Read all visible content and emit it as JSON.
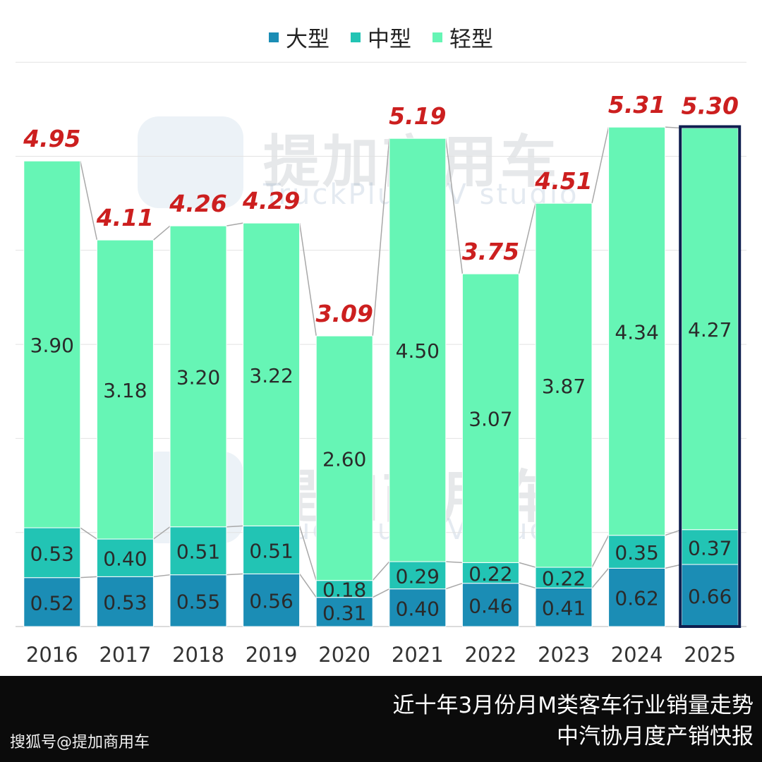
{
  "chart_data": {
    "type": "bar",
    "stacked": true,
    "categories": [
      "2016",
      "2017",
      "2018",
      "2019",
      "2020",
      "2021",
      "2022",
      "2023",
      "2024",
      "2025"
    ],
    "series": [
      {
        "name": "大型",
        "color": "#1b8db5",
        "values": [
          0.52,
          0.53,
          0.55,
          0.56,
          0.31,
          0.4,
          0.46,
          0.41,
          0.62,
          0.66
        ]
      },
      {
        "name": "中型",
        "color": "#22c4b4",
        "values": [
          0.53,
          0.4,
          0.51,
          0.51,
          0.18,
          0.29,
          0.22,
          0.22,
          0.35,
          0.37
        ]
      },
      {
        "name": "轻型",
        "color": "#66f5b5",
        "values": [
          3.9,
          3.18,
          3.2,
          3.22,
          2.6,
          4.5,
          3.07,
          3.87,
          4.34,
          4.27
        ]
      }
    ],
    "totals": [
      4.95,
      4.11,
      4.26,
      4.29,
      3.09,
      5.19,
      3.75,
      4.51,
      5.31,
      5.3
    ],
    "value_labels": {
      "大型": [
        "0.52",
        "0.53",
        "0.55",
        "0.56",
        "0.31",
        "0.40",
        "0.46",
        "0.41",
        "0.62",
        "0.66"
      ],
      "中型": [
        "0.53",
        "0.40",
        "0.51",
        "0.51",
        "0.18",
        "0.29",
        "0.22",
        "0.22",
        "0.35",
        "0.37"
      ],
      "轻型": [
        "3.90",
        "3.18",
        "3.20",
        "3.22",
        "2.60",
        "4.50",
        "3.07",
        "3.87",
        "4.34",
        "4.27"
      ]
    },
    "total_labels": [
      "4.95",
      "4.11",
      "4.26",
      "4.29",
      "3.09",
      "5.19",
      "3.75",
      "4.51",
      "5.31",
      "5.30"
    ],
    "ylim": [
      0,
      6
    ],
    "grid": true,
    "legend": "top-center",
    "highlighted_category": "2025",
    "total_label_color": "#cc1f1f"
  },
  "watermark": {
    "brand_cn": "提加商用车",
    "brand_en": "TruckPlus CV studio"
  },
  "footer": {
    "source_credit": "搜狐号@提加商用车",
    "title_line1": "近十年3月份月M类客车行业销量走势",
    "title_line2": "中汽协月度产销快报"
  }
}
